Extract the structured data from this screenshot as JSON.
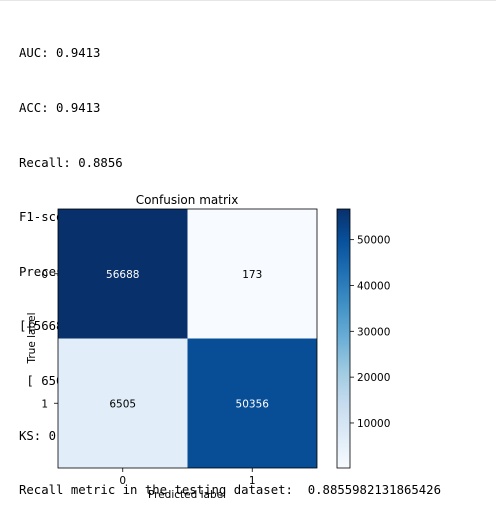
{
  "console": {
    "lines": [
      "AUC: 0.9413",
      "ACC: 0.9413",
      "Recall: 0.8856",
      "F1-score: 0.9378",
      "Precesion: 0.9966",
      "[[56688   173]",
      " [ 6505 50356]]",
      "KS: 0.9036246284799775",
      "Recall metric in the testing dataset:  0.8855982131865426"
    ]
  },
  "chart_data": {
    "type": "heatmap",
    "title": "Confusion matrix",
    "xlabel": "Predicted label",
    "ylabel": "True label",
    "x_ticks": [
      "0",
      "1"
    ],
    "y_ticks": [
      "0",
      "1"
    ],
    "matrix": [
      [
        56688,
        173
      ],
      [
        6505,
        50356
      ]
    ],
    "cell_labels": [
      [
        "56688",
        "173"
      ],
      [
        "6505",
        "50356"
      ]
    ],
    "colormap": "Blues",
    "colorbar": {
      "range": [
        173,
        56688
      ],
      "ticks": [
        10000,
        20000,
        30000,
        40000,
        50000
      ],
      "tick_labels": [
        "10000",
        "20000",
        "30000",
        "40000",
        "50000"
      ]
    }
  }
}
